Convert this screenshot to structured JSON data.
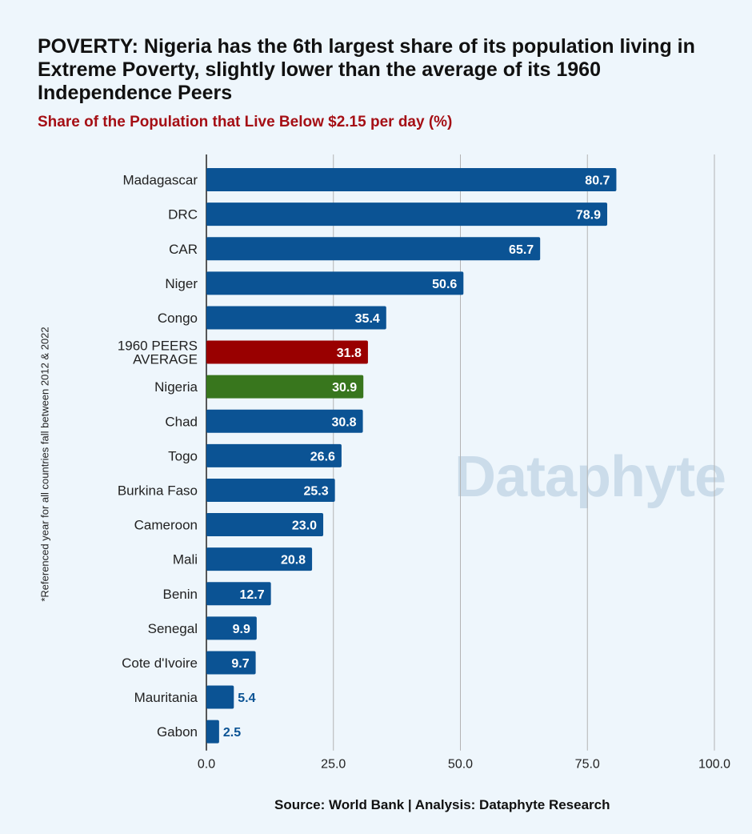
{
  "title": "POVERTY: Nigeria has the 6th largest share of its population living in Extreme Poverty, slightly lower than the average of its 1960 Independence Peers",
  "subtitle": "Share of the Population that Live Below $2.15 per day (%)",
  "side_note": "*Referenced year for all countries fall between 2012 & 2022",
  "source": "Source: World Bank | Analysis: Dataphyte Research",
  "watermark": "Dataphyte",
  "colors": {
    "default_bar": "#0b5394",
    "average_bar": "#990000",
    "nigeria_bar": "#38761d",
    "grid": "#b3b3b3",
    "value_outside": "#0b5394",
    "value_inside": "#ffffff"
  },
  "chart_data": {
    "type": "bar",
    "orientation": "horizontal",
    "categories": [
      "Madagascar",
      "DRC",
      "CAR",
      "Niger",
      "Congo",
      "1960 PEERS AVERAGE",
      "Nigeria",
      "Chad",
      "Togo",
      "Burkina Faso",
      "Cameroon",
      "Mali",
      "Benin",
      "Senegal",
      "Cote d'Ivoire",
      "Mauritania",
      "Gabon"
    ],
    "category_lines": [
      [
        "Madagascar"
      ],
      [
        "DRC"
      ],
      [
        "CAR"
      ],
      [
        "Niger"
      ],
      [
        "Congo"
      ],
      [
        "1960 PEERS",
        "AVERAGE"
      ],
      [
        "Nigeria"
      ],
      [
        "Chad"
      ],
      [
        "Togo"
      ],
      [
        "Burkina Faso"
      ],
      [
        "Cameroon"
      ],
      [
        "Mali"
      ],
      [
        "Benin"
      ],
      [
        "Senegal"
      ],
      [
        "Cote d'Ivoire"
      ],
      [
        "Mauritania"
      ],
      [
        "Gabon"
      ]
    ],
    "values": [
      80.7,
      78.9,
      65.7,
      50.6,
      35.4,
      31.8,
      30.9,
      30.8,
      26.6,
      25.3,
      23.0,
      20.8,
      12.7,
      9.9,
      9.7,
      5.4,
      2.5
    ],
    "value_labels": [
      "80.7",
      "78.9",
      "65.7",
      "50.6",
      "35.4",
      "31.8",
      "30.9",
      "30.8",
      "26.6",
      "25.3",
      "23.0",
      "20.8",
      "12.7",
      "9.9",
      "9.7",
      "5.4",
      "2.5"
    ],
    "highlight": {
      "1960 PEERS AVERAGE": "average",
      "Nigeria": "nigeria"
    },
    "xlim": [
      0,
      100
    ],
    "xticks": [
      0,
      25,
      50,
      75,
      100
    ],
    "xtick_labels": [
      "0.0",
      "25.0",
      "50.0",
      "75.0",
      "100.0"
    ],
    "grid": true
  }
}
